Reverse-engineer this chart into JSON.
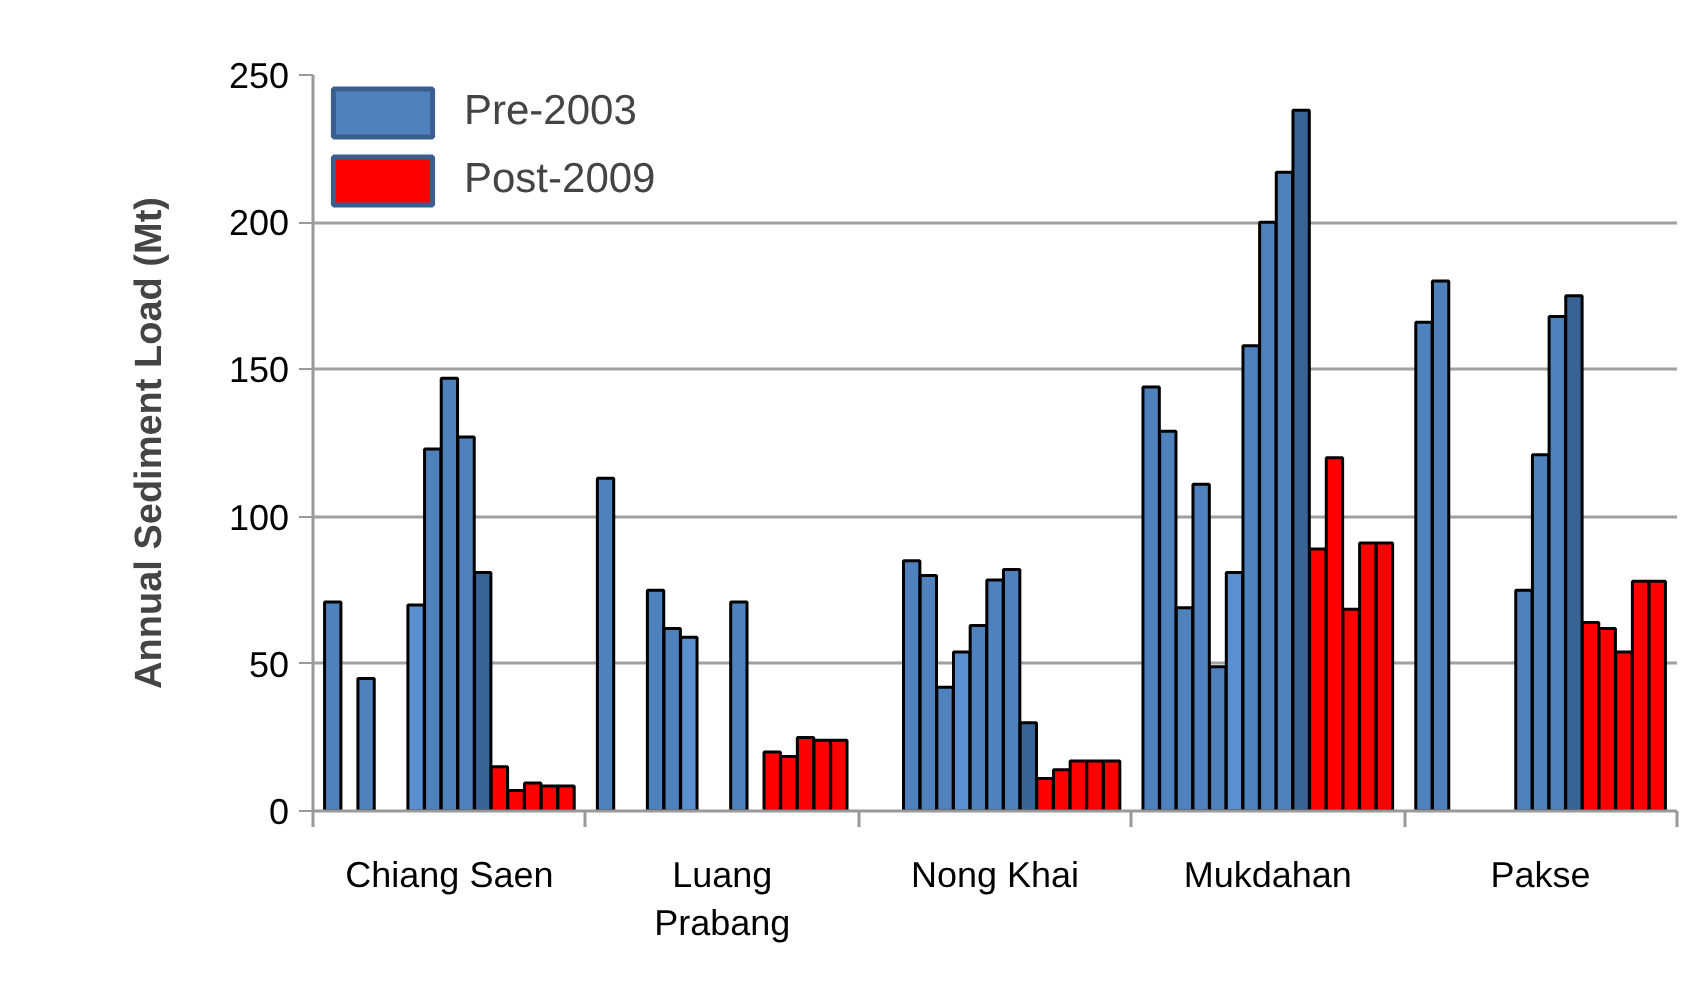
{
  "chart_data": {
    "type": "bar",
    "ylabel": "Annual Sediment Load (Mt)",
    "categories": [
      null,
      null,
      null,
      null,
      null,
      null,
      null,
      "Chiang Saen",
      null,
      null,
      null,
      null,
      null,
      null,
      null,
      null,
      null,
      null,
      null,
      null,
      null,
      null,
      "Luang\nPrabang",
      null,
      null,
      null,
      null,
      null,
      null,
      null,
      null,
      null,
      null,
      null,
      null,
      null,
      null,
      "Nong Khai",
      null,
      null,
      null,
      null,
      null,
      null,
      null,
      null,
      null,
      null,
      null,
      null,
      null,
      null,
      "Mukdahan",
      null,
      null,
      null,
      null,
      null,
      null,
      null,
      null,
      null,
      null,
      null,
      null,
      null,
      null,
      "Pakse",
      null,
      null,
      null,
      null,
      null,
      null,
      null
    ],
    "stacked": true,
    "series": [
      {
        "name": "Pre-2003",
        "color": "#4f81bd",
        "values": [
          71,
          null,
          45,
          null,
          null,
          70,
          123,
          147,
          127,
          81,
          null,
          null,
          null,
          null,
          null,
          113,
          null,
          null,
          75,
          62,
          59,
          null,
          null,
          71,
          null,
          null,
          null,
          null,
          null,
          null,
          null,
          null,
          85,
          80,
          42,
          54,
          63,
          78.5,
          82,
          30,
          null,
          null,
          null,
          null,
          null,
          144,
          129,
          69,
          111,
          49,
          81,
          158,
          200,
          217,
          238,
          null,
          null,
          null,
          null,
          null,
          166,
          180,
          null,
          null,
          null,
          null,
          75,
          121,
          168,
          175,
          null,
          null,
          null,
          null,
          null
        ],
        "colors": [
          "#4f81bd",
          "#4f81bd",
          "#4f81bd",
          "#4f81bd",
          "#4f81bd",
          "#5a8fd2",
          "#4f81bd",
          "#4f81bd",
          "#4f81bd",
          "#386394",
          "#4f81bd",
          "#4f81bd",
          "#4f81bd",
          "#4f81bd",
          "#4f81bd",
          "#4f81bd",
          "#4f81bd",
          "#4f81bd",
          "#4f81bd",
          "#4f81bd",
          "#5a8fd2",
          "#4f81bd",
          "#4f81bd",
          "#4f81bd",
          "#4f81bd",
          "#4f81bd",
          "#4f81bd",
          "#4f81bd",
          "#4f81bd",
          "#4f81bd",
          "#4f81bd",
          "#4f81bd",
          "#4f81bd",
          "#4f81bd",
          "#4f81bd",
          "#5a8fd2",
          "#4f81bd",
          "#4f81bd",
          "#4f81bd",
          "#386394",
          "#4f81bd",
          "#4f81bd",
          "#4f81bd",
          "#4f81bd",
          "#4f81bd",
          "#4f81bd",
          "#4f81bd",
          "#4f81bd",
          "#4f81bd",
          "#4f81bd",
          "#5a8fd2",
          "#4f81bd",
          "#4f81bd",
          "#4f81bd",
          "#386394",
          "#4f81bd",
          "#4f81bd",
          "#4f81bd",
          "#4f81bd",
          "#4f81bd",
          "#4f81bd",
          "#4f81bd",
          "#4f81bd",
          "#4f81bd",
          "#4f81bd",
          "#4f81bd",
          "#4f81bd",
          "#4f81bd",
          "#4f81bd",
          "#386394",
          "#4f81bd",
          "#4f81bd",
          "#4f81bd",
          "#4f81bd",
          "#4f81bd"
        ]
      },
      {
        "name": "Post-2009",
        "color": "#ff0000",
        "values": [
          null,
          null,
          null,
          null,
          null,
          null,
          null,
          null,
          null,
          null,
          15,
          7,
          9.5,
          8.5,
          8.5,
          null,
          null,
          null,
          null,
          null,
          null,
          null,
          null,
          null,
          null,
          20,
          18.5,
          25,
          24,
          24,
          null,
          null,
          null,
          null,
          null,
          null,
          null,
          null,
          null,
          null,
          11,
          14,
          17,
          17,
          17,
          null,
          null,
          null,
          null,
          null,
          null,
          null,
          null,
          null,
          null,
          89,
          120,
          68.5,
          91,
          91,
          null,
          null,
          null,
          null,
          null,
          null,
          null,
          null,
          null,
          null,
          64,
          62,
          54,
          78,
          78
        ]
      }
    ],
    "ylim": [
      0,
      250
    ],
    "yticks": [
      0,
      50,
      100,
      150,
      200,
      250
    ],
    "grid": "y",
    "legend": "top left"
  }
}
